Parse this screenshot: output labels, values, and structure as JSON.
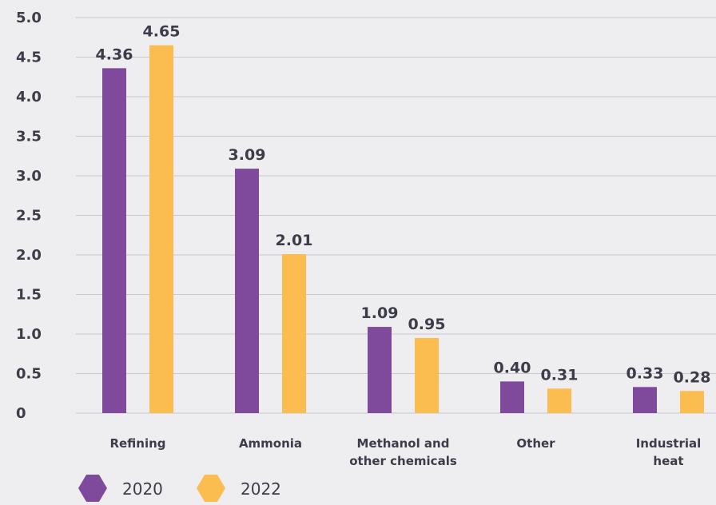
{
  "chart_data": {
    "type": "bar",
    "categories": [
      [
        "Refining"
      ],
      [
        "Ammonia"
      ],
      [
        "Methanol and",
        "other chemicals"
      ],
      [
        "Other"
      ],
      [
        "Industrial",
        "heat"
      ]
    ],
    "series": [
      {
        "name": "2020",
        "color": "#7f4a9c",
        "values": [
          4.36,
          3.09,
          1.09,
          0.4,
          0.33
        ],
        "labels": [
          "4.36",
          "3.09",
          "1.09",
          "0.40",
          "0.33"
        ]
      },
      {
        "name": "2022",
        "color": "#fbbd4f",
        "values": [
          4.65,
          2.01,
          0.95,
          0.31,
          0.28
        ],
        "labels": [
          "4.65",
          "2.01",
          "0.95",
          "0.31",
          "0.28"
        ]
      }
    ],
    "yticks": [
      "0",
      "0.5",
      "1.0",
      "1.5",
      "2.0",
      "2.5",
      "3.0",
      "3.5",
      "4.0",
      "4.5",
      "5.0"
    ],
    "ylim": [
      0,
      5
    ],
    "grid": true,
    "legend_position": "bottom-left"
  }
}
